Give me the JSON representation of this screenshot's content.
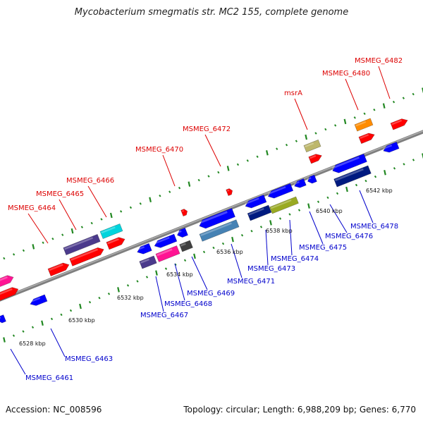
{
  "title": "Mycobacterium smegmatis str. MC2 155, complete genome",
  "footer": {
    "accession": "Accession: NC_008596",
    "summary": "Topology: circular; Length: 6,988,209 bp; Genes: 6,770"
  },
  "colors": {
    "backbone": "#8a8a8a",
    "tick": "#228822",
    "forward_label": "#dd0000",
    "reverse_label": "#0000cc",
    "red": "#ff0000",
    "blue": "#0000ff",
    "pink": "#ff1493",
    "purple": "#4b3a8c",
    "cyan": "#00d4dd",
    "navy": "#001a80",
    "olive": "#99aa22",
    "khaki": "#bdb76b",
    "orange": "#ff8c00",
    "steel": "#4682b4",
    "gray": "#666666",
    "dark_gray": "#404040"
  },
  "scale_labels": [
    {
      "text": "6528 kbp"
    },
    {
      "text": "6530 kbp"
    },
    {
      "text": "6532 kbp"
    },
    {
      "text": "6534 kbp"
    },
    {
      "text": "6536 kbp"
    },
    {
      "text": "6538 kbp"
    },
    {
      "text": "6540 kbp"
    },
    {
      "text": "6542 kbp"
    }
  ],
  "forward_labels": [
    {
      "text": "MSMEG_6464"
    },
    {
      "text": "MSMEG_6465"
    },
    {
      "text": "MSMEG_6466"
    },
    {
      "text": "MSMEG_6470"
    },
    {
      "text": "MSMEG_6472"
    },
    {
      "text": "msrA"
    },
    {
      "text": "MSMEG_6480"
    },
    {
      "text": "MSMEG_6482"
    }
  ],
  "reverse_labels": [
    {
      "text": "MSMEG_6461"
    },
    {
      "text": "MSMEG_6463"
    },
    {
      "text": "MSMEG_6467"
    },
    {
      "text": "MSMEG_6468"
    },
    {
      "text": "MSMEG_6469"
    },
    {
      "text": "MSMEG_6471"
    },
    {
      "text": "MSMEG_6473"
    },
    {
      "text": "MSMEG_6474"
    },
    {
      "text": "MSMEG_6475"
    },
    {
      "text": "MSMEG_6476"
    },
    {
      "text": "MSMEG_6478"
    }
  ]
}
